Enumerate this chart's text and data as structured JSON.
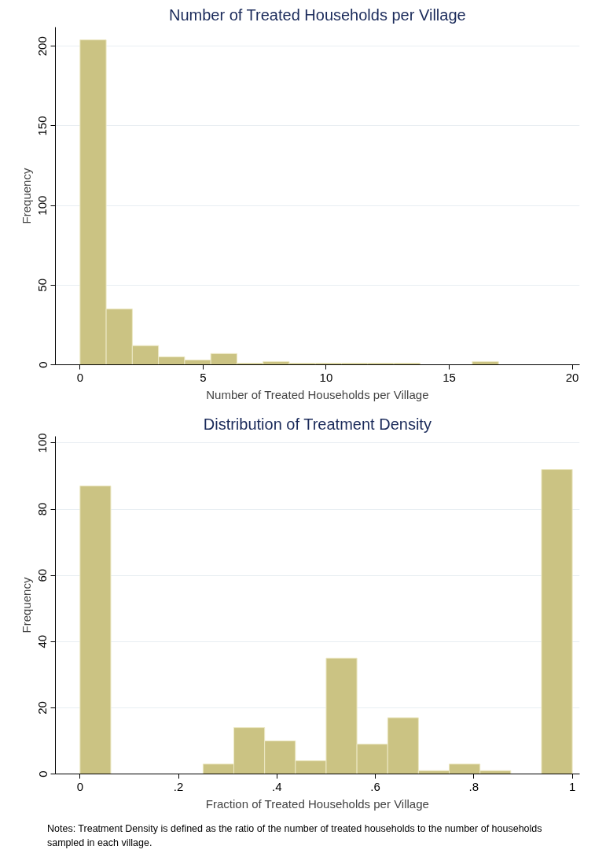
{
  "chart_data": [
    {
      "type": "histogram",
      "title": "Number of Treated Households per Village",
      "xlabel": "Number of Treated Households per Village",
      "ylabel": "Frequency",
      "bins": [
        0,
        1.0625,
        2.125,
        3.1875,
        4.25,
        5.3125,
        6.375,
        7.4375,
        8.5,
        9.5625,
        10.625,
        11.6875,
        12.75,
        13.8125,
        14.875,
        15.9375,
        17
      ],
      "values": [
        204,
        35,
        12,
        5,
        3,
        7,
        1,
        2,
        1,
        1,
        1,
        1,
        1,
        0,
        0,
        2
      ],
      "color": "#cbc383",
      "xlim": [
        -1,
        20.3
      ],
      "ylim": [
        0,
        212
      ],
      "xticks": [
        0,
        5,
        10,
        15,
        20
      ],
      "yticks": [
        0,
        50,
        100,
        150,
        200
      ],
      "grid": "y"
    },
    {
      "type": "histogram",
      "title": "Distribution of Treatment Density",
      "xlabel": "Fraction of Treated Households per Village",
      "ylabel": "Frequency",
      "bins": [
        0,
        0.0625,
        0.125,
        0.1875,
        0.25,
        0.3125,
        0.375,
        0.4375,
        0.5,
        0.5625,
        0.625,
        0.6875,
        0.75,
        0.8125,
        0.875,
        0.9375,
        1
      ],
      "values": [
        87,
        0,
        0,
        0,
        3,
        14,
        10,
        4,
        35,
        9,
        17,
        1,
        3,
        1,
        0,
        92
      ],
      "color": "#cbc383",
      "xlim": [
        -0.05,
        1.015
      ],
      "ylim": [
        0,
        102
      ],
      "xticks": [
        {
          "value": 0,
          "label": "0"
        },
        {
          "value": 0.2,
          "label": ".2"
        },
        {
          "value": 0.4,
          "label": ".4"
        },
        {
          "value": 0.6,
          "label": ".6"
        },
        {
          "value": 0.8,
          "label": ".8"
        },
        {
          "value": 1,
          "label": "1"
        }
      ],
      "yticks": [
        0,
        20,
        40,
        60,
        80,
        100
      ],
      "grid": "y",
      "annotations": [
        "Notes: Treatment Density is defined as the ratio of the number of treated households to the number of households sampled in each village."
      ]
    }
  ]
}
